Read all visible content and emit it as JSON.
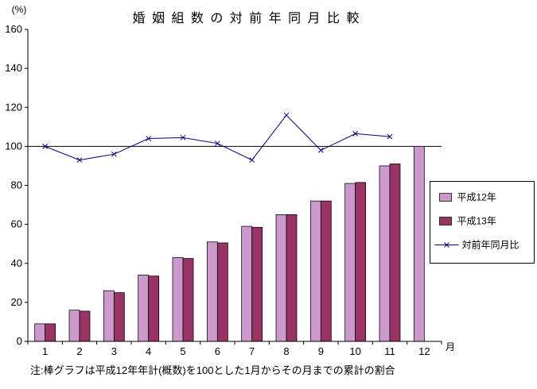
{
  "title": "婚 姻 組 数 の 対 前 年 同 月 比 較",
  "y_unit": "(%)",
  "x_unit": "月",
  "note": "注:棒グラフは平成12年年計(概数)を100とした1月からその月までの累計の割合",
  "chart_data": {
    "type": "combo-bar-line",
    "title": "婚姻組数の対前年同月比較",
    "categories": [
      "1",
      "2",
      "3",
      "4",
      "5",
      "6",
      "7",
      "8",
      "9",
      "10",
      "11",
      "12"
    ],
    "series": [
      {
        "name": "平成12年",
        "type": "bar",
        "color": "#CC99CC",
        "values": [
          9,
          16,
          26,
          34,
          43,
          51,
          59,
          65,
          72,
          81,
          90,
          100
        ]
      },
      {
        "name": "平成13年",
        "type": "bar",
        "color": "#993366",
        "values": [
          9,
          15.5,
          25,
          33.5,
          42.5,
          50.5,
          58.5,
          65,
          72,
          81.5,
          91,
          null
        ]
      },
      {
        "name": "対前年同月比",
        "type": "line",
        "color": "#000080",
        "marker": "x",
        "values": [
          100,
          93,
          96,
          104,
          104.5,
          101.5,
          93,
          116,
          98,
          106.5,
          105,
          null
        ]
      }
    ],
    "ylim": [
      0,
      160
    ],
    "yticks": [
      0,
      20,
      40,
      60,
      80,
      100,
      120,
      140,
      160
    ],
    "reference_line_y": 100,
    "ylabel": "(%)",
    "xlabel": "月",
    "grid": "off",
    "legend_position": "right"
  }
}
